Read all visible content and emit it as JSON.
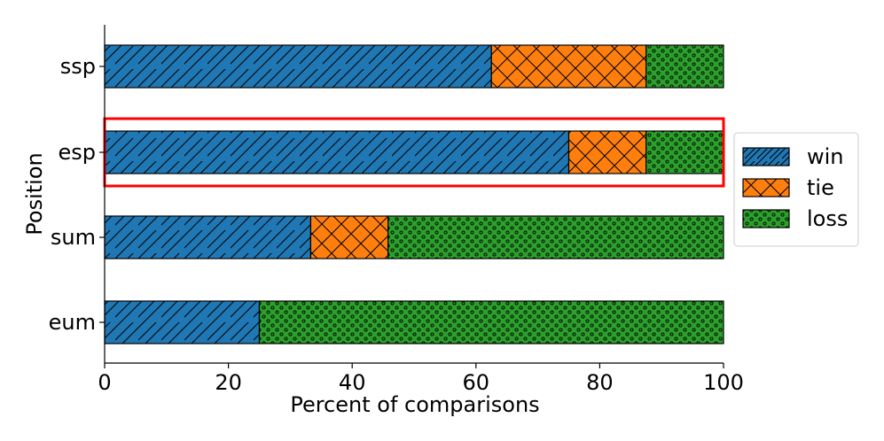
{
  "chart_data": {
    "type": "bar",
    "orientation": "horizontal",
    "stacked": true,
    "title": "",
    "xlabel": "Percent of comparisons",
    "ylabel": "Position",
    "xlim": [
      0,
      100
    ],
    "xticks": [
      0,
      20,
      40,
      60,
      80,
      100
    ],
    "categories": [
      "ssp",
      "esp",
      "sum",
      "eum"
    ],
    "series": [
      {
        "name": "win",
        "color": "#1f77b4",
        "hatch": "diagonal",
        "values": [
          62.5,
          75.0,
          33.3,
          25.0
        ]
      },
      {
        "name": "tie",
        "color": "#ff7f0e",
        "hatch": "crosshatch",
        "values": [
          25.0,
          12.5,
          12.5,
          0.0
        ]
      },
      {
        "name": "loss",
        "color": "#2ca02c",
        "hatch": "dots",
        "values": [
          12.5,
          12.5,
          54.2,
          75.0
        ]
      }
    ],
    "highlight": {
      "category": "esp",
      "color": "#ff0000"
    },
    "legend": {
      "position": "right-center",
      "entries": [
        "win",
        "tie",
        "loss"
      ]
    },
    "grid": false
  }
}
